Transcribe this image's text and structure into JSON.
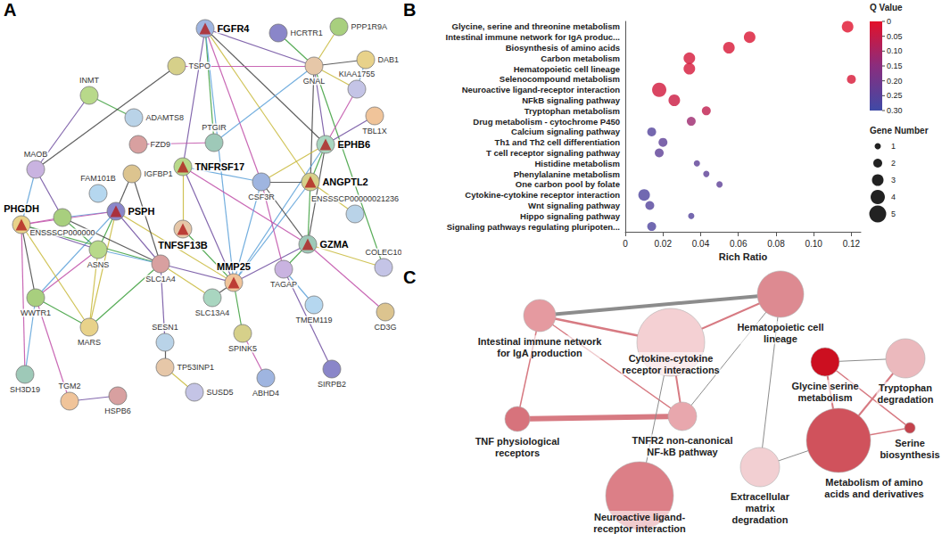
{
  "panel_letters": [
    "A",
    "B",
    "C"
  ],
  "string_network": {
    "nodes": [
      {
        "label": "INMT"
      },
      {
        "label": "TSPO"
      },
      {
        "label": "ADAMTS8"
      },
      {
        "label": "FGFR4",
        "marker": "triangle"
      },
      {
        "label": "HCRTR1"
      },
      {
        "label": "PPP1R9A"
      },
      {
        "label": "DAB1"
      },
      {
        "label": "GNAL"
      },
      {
        "label": "KIAA1755"
      },
      {
        "label": "PTGIR"
      },
      {
        "label": "TBL1X"
      },
      {
        "label": "FZD9"
      },
      {
        "label": "EPHB6",
        "marker": "triangle"
      },
      {
        "label": "MAOB"
      },
      {
        "label": "FAM101B"
      },
      {
        "label": "IGFBP1"
      },
      {
        "label": "TNFRSF17",
        "marker": "triangle"
      },
      {
        "label": "ANGPTL2",
        "marker": "triangle"
      },
      {
        "label": "ENSSSCP00000021236"
      },
      {
        "label": "CSF3R"
      },
      {
        "label": "PSPH",
        "marker": "triangle"
      },
      {
        "label": "ENSSSCP000000"
      },
      {
        "label": "PHGDH",
        "marker": "triangle"
      },
      {
        "label": "TNFSF13B",
        "marker": "triangle"
      },
      {
        "label": "COLEC10"
      },
      {
        "label": "GZMA",
        "marker": "triangle"
      },
      {
        "label": "MMP25",
        "marker": "triangle"
      },
      {
        "label": "SLC1A4"
      },
      {
        "label": "SLC13A4"
      },
      {
        "label": "TAGAP"
      },
      {
        "label": "TMEM119"
      },
      {
        "label": "CD3G"
      },
      {
        "label": "ASNS"
      },
      {
        "label": "SPINK5"
      },
      {
        "label": "SESN1"
      },
      {
        "label": "ABHD4"
      },
      {
        "label": "SIRPB2"
      },
      {
        "label": "WWTR1"
      },
      {
        "label": "MARS"
      },
      {
        "label": "TP53INP1"
      },
      {
        "label": "SUSD5"
      },
      {
        "label": "SH3D19"
      },
      {
        "label": "TGM2"
      },
      {
        "label": "HSPB6"
      }
    ],
    "edges": [
      [
        3,
        7
      ],
      [
        3,
        9
      ],
      [
        3,
        12
      ],
      [
        3,
        17
      ],
      [
        3,
        26
      ],
      [
        3,
        19
      ],
      [
        3,
        16
      ],
      [
        7,
        4
      ],
      [
        7,
        6
      ],
      [
        7,
        8
      ],
      [
        7,
        9
      ],
      [
        7,
        1
      ],
      [
        7,
        12
      ],
      [
        7,
        24
      ],
      [
        7,
        17
      ],
      [
        7,
        5
      ],
      [
        6,
        8
      ],
      [
        8,
        12
      ],
      [
        12,
        10
      ],
      [
        12,
        17
      ],
      [
        12,
        25
      ],
      [
        12,
        19
      ],
      [
        12,
        26
      ],
      [
        9,
        11
      ],
      [
        0,
        13
      ],
      [
        0,
        2
      ],
      [
        1,
        13
      ],
      [
        16,
        23
      ],
      [
        16,
        19
      ],
      [
        16,
        25
      ],
      [
        16,
        26
      ],
      [
        17,
        25
      ],
      [
        17,
        19
      ],
      [
        17,
        18
      ],
      [
        17,
        26
      ],
      [
        25,
        31
      ],
      [
        25,
        26
      ],
      [
        25,
        29
      ],
      [
        25,
        19
      ],
      [
        25,
        24
      ],
      [
        19,
        26
      ],
      [
        19,
        29
      ],
      [
        26,
        27
      ],
      [
        26,
        23
      ],
      [
        26,
        28
      ],
      [
        26,
        20
      ],
      [
        20,
        21
      ],
      [
        20,
        22
      ],
      [
        20,
        27
      ],
      [
        20,
        32
      ],
      [
        20,
        15
      ],
      [
        20,
        38
      ],
      [
        20,
        37
      ],
      [
        22,
        21
      ],
      [
        22,
        32
      ],
      [
        22,
        27
      ],
      [
        22,
        37
      ],
      [
        22,
        38
      ],
      [
        22,
        13
      ],
      [
        22,
        41
      ],
      [
        21,
        13
      ],
      [
        21,
        32
      ],
      [
        21,
        27
      ],
      [
        32,
        38
      ],
      [
        32,
        27
      ],
      [
        32,
        37
      ],
      [
        27,
        34
      ],
      [
        27,
        38
      ],
      [
        27,
        15
      ],
      [
        27,
        28
      ],
      [
        37,
        41
      ],
      [
        37,
        42
      ],
      [
        42,
        43
      ],
      [
        37,
        38
      ],
      [
        34,
        39
      ],
      [
        39,
        40
      ],
      [
        29,
        30
      ],
      [
        33,
        35
      ],
      [
        29,
        36
      ],
      [
        33,
        26
      ]
    ]
  },
  "chart_data": {
    "type": "scatter",
    "x_label": "Rich Ratio",
    "categories": [
      "Glycine, serine and threonine metabolism",
      "Intestinal immune network for IgA produc...",
      "Biosynthesis of amino acids",
      "Carbon metabolism",
      "Hematopoietic cell lineage",
      "Selenocompound metabolism",
      "Neuroactive ligand-receptor interaction",
      "NFkB signaling pathway",
      "Tryptophan metabolism",
      "Drug metabolism - cytochrome P450",
      "Calcium signaling pathway",
      "Th1 and Th2 cell differentiation",
      "T cell receptor signaling pathway",
      "Histidine metabolism",
      "Phenylalanine metabolism",
      "One carbon pool by folate",
      "Cytokine-cytokine receptor interaction",
      "Wnt signaling pathway",
      "Hippo signaling pathway",
      "Signaling pathways regulating pluripoten..."
    ],
    "values": [
      0.118,
      0.066,
      0.055,
      0.034,
      0.034,
      0.12,
      0.018,
      0.026,
      0.043,
      0.035,
      0.014,
      0.02,
      0.018,
      0.038,
      0.043,
      0.05,
      0.01,
      0.013,
      0.035,
      0.014
    ],
    "q_values": [
      0.005,
      0.015,
      0.02,
      0.025,
      0.025,
      0.02,
      0.03,
      0.04,
      0.06,
      0.12,
      0.26,
      0.24,
      0.24,
      0.24,
      0.24,
      0.24,
      0.27,
      0.26,
      0.26,
      0.27
    ],
    "gene_numbers": [
      3,
      3,
      3,
      3,
      3,
      2,
      4,
      3,
      2,
      2,
      2,
      2,
      2,
      1,
      1,
      1,
      3,
      2,
      1,
      2
    ],
    "xlim": [
      0,
      0.125
    ],
    "xticks": [
      0,
      0.02,
      0.04,
      0.06,
      0.08,
      {
        "value": 0.1,
        "label": "0.10"
      },
      0.12
    ],
    "grid": false,
    "color_bar": {
      "title": "Q Value",
      "range": [
        0,
        0.3
      ],
      "ticks": [
        0,
        0.05,
        {
          "value": 0.1,
          "label": "0.10"
        },
        0.15,
        {
          "value": 0.2,
          "label": "0.20"
        },
        0.25,
        {
          "value": 0.3,
          "label": "0.30"
        }
      ]
    },
    "size_legend": {
      "title": "Gene Number",
      "values": [
        1,
        2,
        3,
        4,
        5
      ]
    }
  },
  "pathway_network": {
    "nodes": [
      {
        "label": "Intestinal immune network for IgA production",
        "color": "#e59aa0"
      },
      {
        "label": "Cytokine-cytokine receptor interactions",
        "color": "#f4d0d3"
      },
      {
        "label": "Hematopoietic cell lineage",
        "color": "#dd8a91"
      },
      {
        "label": "TNF physiological receptors",
        "color": "#d7737c"
      },
      {
        "label": "TNFR2 non-canonical NF-kB pathway",
        "color": "#e8a7ad"
      },
      {
        "label": "Neuroactive ligand-receptor interaction",
        "color": "#dc7f87"
      },
      {
        "label": "Extracellular matrix degradation",
        "color": "#f2cfd2"
      },
      {
        "label": "Glycine serine metabolism",
        "color": "#cc0f20"
      },
      {
        "label": "Tryptophan degradation",
        "color": "#ebb9bd"
      },
      {
        "label": "Metabolism of amino acids and derivatives",
        "color": "#d0525c"
      },
      {
        "label": "Serine biosynthesis",
        "color": "#c4424c"
      }
    ],
    "edges": [
      {
        "source": 0,
        "target": 2,
        "color": "#8c8c8c"
      },
      {
        "source": 0,
        "target": 1,
        "color": "#d77a82"
      },
      {
        "source": 0,
        "target": 3,
        "color": "#d77a82"
      },
      {
        "source": 0,
        "target": 4,
        "color": "#d77a82"
      },
      {
        "source": 1,
        "target": 2,
        "color": "#d77a82"
      },
      {
        "source": 1,
        "target": 4,
        "color": "#d77a82"
      },
      {
        "source": 3,
        "target": 4,
        "color": "#d77a82"
      },
      {
        "source": 1,
        "target": 5,
        "color": "#8c8c8c"
      },
      {
        "source": 2,
        "target": 4,
        "color": "#8c8c8c"
      },
      {
        "source": 2,
        "target": 6,
        "color": "#8c8c8c"
      },
      {
        "source": 6,
        "target": 9,
        "color": "#8c8c8c"
      },
      {
        "source": 7,
        "target": 8,
        "color": "#8c8c8c"
      },
      {
        "source": 7,
        "target": 9,
        "color": "#d77a82"
      },
      {
        "source": 7,
        "target": 10,
        "color": "#d77a82"
      },
      {
        "source": 8,
        "target": 9,
        "color": "#d77a82"
      },
      {
        "source": 9,
        "target": 10,
        "color": "#d77a82"
      }
    ]
  }
}
